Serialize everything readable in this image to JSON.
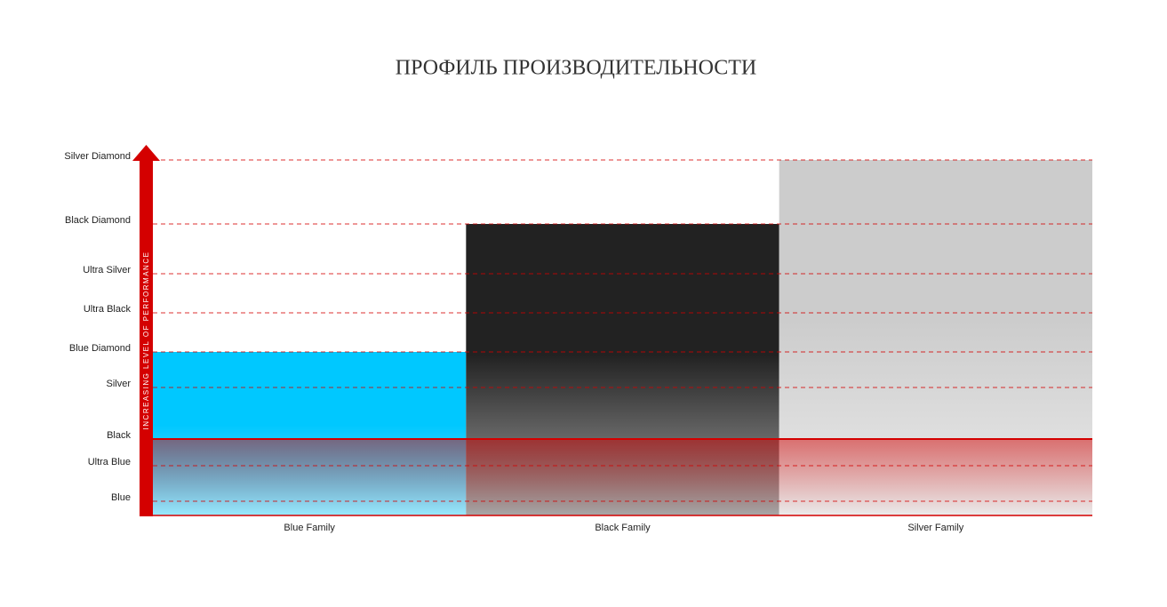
{
  "chart_data": {
    "type": "bar",
    "title": "ПРОФИЛЬ ПРОИЗВОДИТЕЛЬНОСТИ",
    "y_label": "INCREASING LEVEL OF PERFORMANCE",
    "categories": [
      "Blue Family",
      "Black Family",
      "Silver Family"
    ],
    "values": [
      46,
      82,
      100
    ],
    "colors": [
      "#00c8ff",
      "#222222",
      "#cccccc"
    ],
    "ylim": [
      0,
      100
    ],
    "yticks": [
      {
        "value": 4,
        "label": "Blue"
      },
      {
        "value": 14,
        "label": "Ultra Blue"
      },
      {
        "value": 21.5,
        "label": "Black"
      },
      {
        "value": 36,
        "label": "Silver"
      },
      {
        "value": 46,
        "label": "Blue Diamond"
      },
      {
        "value": 57,
        "label": "Ultra Black"
      },
      {
        "value": 68,
        "label": "Ultra Silver"
      },
      {
        "value": 82,
        "label": "Black Diamond"
      },
      {
        "value": 100,
        "label": "Silver Diamond"
      }
    ],
    "reference_line": 21.5,
    "grid": true,
    "axis_color": "#d40000"
  }
}
